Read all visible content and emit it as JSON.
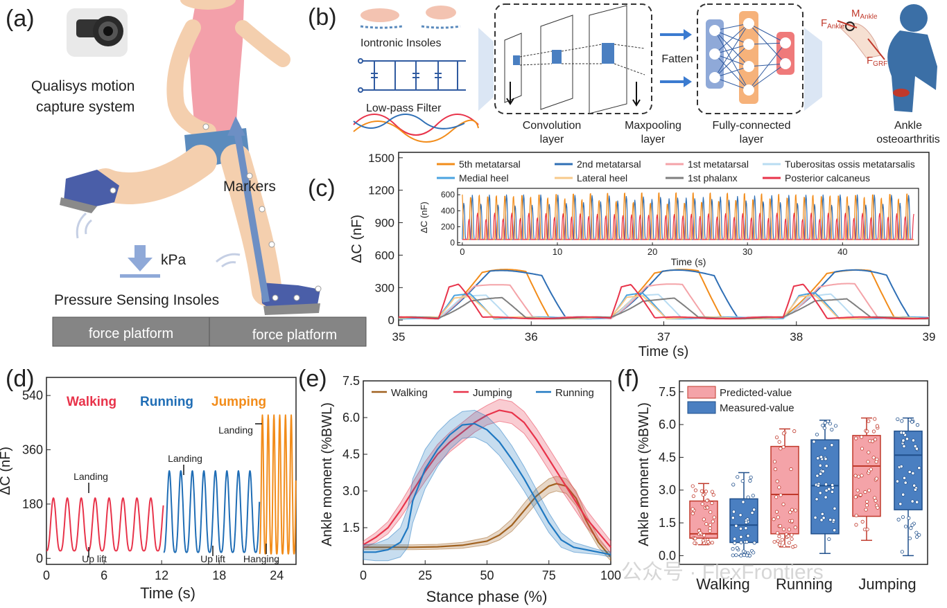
{
  "panel_labels": {
    "a": "(a)",
    "b": "(b)",
    "c": "(c)",
    "d": "(d)",
    "e": "(e)",
    "f": "(f)"
  },
  "panel_a": {
    "camera_label_1": "Qualisys motion",
    "camera_label_2": "capture system",
    "markers_label": "Markers",
    "kpa_label": "kPa",
    "insoles_label": "Pressure Sensing Insoles",
    "platform_left": "force platform",
    "platform_right": "force platform"
  },
  "panel_b": {
    "insoles_label": "Iontronic Insoles",
    "filter_label": "Low-pass Filter",
    "conv_label_1": "Convolution",
    "conv_label_2": "layer",
    "maxpool_label_1": "Maxpooling",
    "maxpool_label_2": "layer",
    "flatten_label": "Fatten",
    "fc_label_1": "Fully-connected",
    "fc_label_2": "layer",
    "ankle_label_1": "Ankle",
    "ankle_label_2": "osteoarthritis",
    "f_ankle": "F",
    "f_ankle_sub": "Ankle",
    "m_ankle": "M",
    "m_ankle_sub": "Ankle",
    "f_grf": "F",
    "f_grf_sub": "GRF"
  },
  "chart_data": [
    {
      "id": "c_main",
      "type": "line",
      "title": "",
      "xlabel": "Time (s)",
      "ylabel": "ΔC (nF)",
      "xlim": [
        35,
        39
      ],
      "ylim": [
        -50,
        1550
      ],
      "xticks": [
        "35",
        "36",
        "37",
        "38",
        "39"
      ],
      "yticks": [
        "0",
        "300",
        "600",
        "900",
        "1200",
        "1500"
      ],
      "cycle_period_s": 1.3,
      "cycle_starts_s": [
        35.3,
        36.6,
        37.9
      ],
      "series": [
        {
          "name": "5th metatarsal",
          "color": "#f28c1a",
          "peak_nF": 460,
          "peak_time_s": 35.85
        },
        {
          "name": "2nd metatarsal",
          "color": "#2f6fb5",
          "peak_nF": 455,
          "peak_time_s": 35.95
        },
        {
          "name": "1st metatarsal",
          "color": "#f4a3a8",
          "peak_nF": 330,
          "peak_time_s": 35.75
        },
        {
          "name": "Tuberositas ossis metatarsalis",
          "color": "#b9dcf2",
          "peak_nF": 240,
          "peak_time_s": 35.6
        },
        {
          "name": "Medial heel",
          "color": "#4aa3e0",
          "peak_nF": 270,
          "peak_time_s": 35.5
        },
        {
          "name": "Lateral heel",
          "color": "#f7c98a",
          "peak_nF": 250,
          "peak_time_s": 35.5
        },
        {
          "name": "1st phalanx",
          "color": "#7f7f7f",
          "peak_nF": 200,
          "peak_time_s": 35.7
        },
        {
          "name": "Posterior calcaneus",
          "color": "#e8334a",
          "peak_nF": 400,
          "peak_time_s": 35.42
        }
      ]
    },
    {
      "id": "c_inset",
      "type": "line",
      "xlabel": "Time (s)",
      "ylabel": "ΔC (nF)",
      "xlim": [
        -0.5,
        48
      ],
      "ylim": [
        -30,
        680
      ],
      "xticks": [
        "0",
        "10",
        "20",
        "30",
        "40"
      ],
      "yticks": [
        "0",
        "200",
        "400",
        "600"
      ],
      "cycle_period_s": 0.9,
      "series": [
        {
          "name": "2nd metatarsal",
          "color": "#2f6fb5",
          "peak_nF": 560
        },
        {
          "name": "5th metatarsal",
          "color": "#f28c1a",
          "peak_nF": 600
        },
        {
          "name": "Posterior calcaneus",
          "color": "#e8334a",
          "peak_nF": 330
        }
      ]
    },
    {
      "id": "d",
      "type": "line",
      "xlabel": "Time (s)",
      "ylabel": "ΔC (nF)",
      "xlim": [
        0,
        26
      ],
      "ylim": [
        -20,
        600
      ],
      "xticks": [
        "0",
        "6",
        "12",
        "18",
        "24"
      ],
      "yticks": [
        "0",
        "180",
        "360",
        "540"
      ],
      "mode_labels": [
        "Walking",
        "Running",
        "Jumping"
      ],
      "mode_colors": [
        "#e8334a",
        "#1f6db5",
        "#f28c1a"
      ],
      "annotations": [
        "Landing",
        "Up lift",
        "Landing",
        "Up lift",
        "Landing",
        "Hanging"
      ],
      "segments": [
        {
          "name": "Walking",
          "start_s": 0,
          "end_s": 12.2,
          "period_s": 1.45,
          "peak_nF": 200,
          "base_nF": 25
        },
        {
          "name": "Running",
          "start_s": 12.2,
          "end_s": 22.2,
          "period_s": 1.2,
          "peak_nF": 290,
          "base_nF": 20
        },
        {
          "name": "Jumping",
          "start_s": 22.2,
          "end_s": 26,
          "period_s": 0.6,
          "peak_nF": 475,
          "base_nF": 15
        }
      ]
    },
    {
      "id": "e",
      "type": "area",
      "xlabel": "Stance phase (%)",
      "ylabel": "Ankle moment (%BWL)",
      "xlim": [
        0,
        100
      ],
      "ylim": [
        0,
        7.5
      ],
      "xticks": [
        "0",
        "25",
        "50",
        "75",
        "100"
      ],
      "yticks": [
        "1.5",
        "3.0",
        "4.5",
        "6.0",
        "7.5"
      ],
      "series": [
        {
          "name": "Walking",
          "color": "#a0611f",
          "x": [
            0,
            10,
            20,
            30,
            40,
            50,
            55,
            60,
            65,
            70,
            75,
            78,
            82,
            86,
            90,
            95,
            100
          ],
          "y": [
            0.7,
            0.7,
            0.7,
            0.72,
            0.78,
            0.95,
            1.2,
            1.6,
            2.2,
            2.8,
            3.2,
            3.3,
            3.2,
            2.7,
            1.8,
            0.9,
            0.3
          ],
          "band": [
            0.1,
            0.1,
            0.1,
            0.1,
            0.12,
            0.15,
            0.2,
            0.25,
            0.3,
            0.3,
            0.3,
            0.3,
            0.3,
            0.3,
            0.25,
            0.2,
            0.15
          ]
        },
        {
          "name": "Jumping",
          "color": "#e8334a",
          "x": [
            0,
            5,
            10,
            15,
            20,
            25,
            30,
            35,
            40,
            45,
            50,
            55,
            60,
            65,
            70,
            75,
            80,
            85,
            90,
            95,
            100
          ],
          "y": [
            0.8,
            1.1,
            1.5,
            2.2,
            3.0,
            3.8,
            4.5,
            5.0,
            5.4,
            5.8,
            6.1,
            6.3,
            6.2,
            5.8,
            5.1,
            4.3,
            3.5,
            2.7,
            1.9,
            1.3,
            0.7
          ],
          "band": [
            0.15,
            0.2,
            0.25,
            0.3,
            0.35,
            0.4,
            0.4,
            0.4,
            0.4,
            0.4,
            0.4,
            0.45,
            0.45,
            0.45,
            0.45,
            0.45,
            0.45,
            0.4,
            0.35,
            0.3,
            0.25
          ]
        },
        {
          "name": "Running",
          "color": "#1f78c1",
          "x": [
            0,
            5,
            10,
            15,
            18,
            20,
            25,
            30,
            35,
            40,
            45,
            50,
            55,
            60,
            65,
            70,
            75,
            80,
            85,
            90,
            95,
            100
          ],
          "y": [
            0.5,
            0.5,
            0.6,
            0.9,
            1.5,
            2.6,
            3.9,
            4.7,
            5.3,
            5.7,
            5.75,
            5.5,
            5.0,
            4.3,
            3.5,
            2.6,
            1.7,
            1.0,
            0.7,
            0.6,
            0.5,
            0.4
          ],
          "band": [
            0.3,
            0.35,
            0.45,
            0.6,
            0.8,
            0.9,
            0.8,
            0.7,
            0.6,
            0.55,
            0.55,
            0.55,
            0.55,
            0.55,
            0.5,
            0.45,
            0.4,
            0.3,
            0.2,
            0.15,
            0.1,
            0.1
          ]
        }
      ]
    },
    {
      "id": "f",
      "type": "box",
      "xlabel": "",
      "ylabel": "Ankle moment (%BWL)",
      "ylim": [
        -0.4,
        8
      ],
      "yticks": [
        "0.0",
        "1.5",
        "3.0",
        "4.5",
        "6.0",
        "7.5"
      ],
      "categories": [
        "Walking",
        "Running",
        "Jumping"
      ],
      "legend": [
        "Predicted-value",
        "Measured-value"
      ],
      "colors": {
        "Predicted-value": "#f4a3a8",
        "Measured-value": "#4a7fc1"
      },
      "boxes": [
        {
          "group": "Walking",
          "kind": "Predicted-value",
          "min": 0.5,
          "q1": 0.8,
          "median": 1.0,
          "q3": 2.5,
          "max": 3.3
        },
        {
          "group": "Walking",
          "kind": "Measured-value",
          "min": 0.0,
          "q1": 0.6,
          "median": 1.4,
          "q3": 2.6,
          "max": 3.8
        },
        {
          "group": "Running",
          "kind": "Predicted-value",
          "min": 0.4,
          "q1": 1.0,
          "median": 2.8,
          "q3": 5.0,
          "max": 5.8
        },
        {
          "group": "Running",
          "kind": "Measured-value",
          "min": 0.1,
          "q1": 1.0,
          "median": 3.2,
          "q3": 5.3,
          "max": 6.2
        },
        {
          "group": "Jumping",
          "kind": "Predicted-value",
          "min": 0.7,
          "q1": 1.8,
          "median": 4.1,
          "q3": 5.5,
          "max": 6.3
        },
        {
          "group": "Jumping",
          "kind": "Measured-value",
          "min": 0.0,
          "q1": 2.1,
          "median": 4.6,
          "q3": 5.7,
          "max": 6.3
        }
      ]
    }
  ],
  "watermark": "公众号 · FlexFrontiers"
}
